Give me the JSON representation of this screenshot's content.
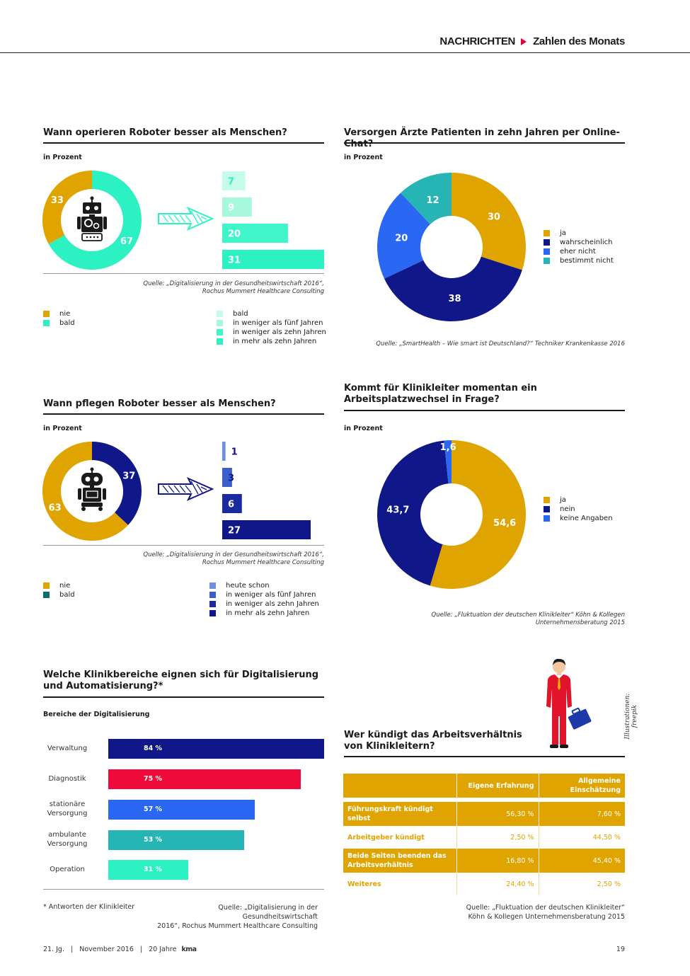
{
  "header": {
    "section": "NACHRICHTEN",
    "subsection": "Zahlen des Monats"
  },
  "unit_label": "in Prozent",
  "colors": {
    "gold": "#e0a400",
    "mint": "#2cf2c3",
    "navy": "#101788",
    "blue": "#2a67f2",
    "teal": "#27b4b4",
    "red": "#ef0a3c",
    "darkteal": "#0c6c6a",
    "textDark": "#1a1a1a"
  },
  "chart_data": [
    {
      "id": "robots_operate",
      "type": "pie",
      "title": "Wann operieren Roboter besser als Menschen?",
      "subtitle": "in Prozent",
      "slices": [
        {
          "name": "nie",
          "value": 33,
          "color": "#e0a400"
        },
        {
          "name": "bald",
          "value": 67,
          "color": "#2cf2c3"
        }
      ],
      "breakdown": {
        "type": "bar",
        "categories": [
          "bald",
          "in weniger als fünf Jahren",
          "in weniger als zehn Jahren",
          "in mehr als zehn Jahren"
        ],
        "values": [
          7,
          9,
          20,
          31
        ],
        "colors": [
          "#c4fbe9",
          "#a6f9dc",
          "#3ef6c9",
          "#2cf2c3"
        ],
        "label_colors": [
          "#2cf2c3",
          "#ffffff",
          "#ffffff",
          "#ffffff"
        ]
      },
      "source": [
        "Quelle: „Digitalisierung in der Gesundheitswirtschaft 2016“,",
        "Rochus Mummert Healthcare Consulting"
      ]
    },
    {
      "id": "online_chat",
      "type": "pie",
      "title": "Versorgen Ärzte Patienten in zehn Jahren per Online-Chat?",
      "subtitle": "in Prozent",
      "slices": [
        {
          "name": "ja",
          "value": 30,
          "color": "#e0a400"
        },
        {
          "name": "wahrscheinlich",
          "value": 38,
          "color": "#101788"
        },
        {
          "name": "eher nicht",
          "value": 20,
          "color": "#2a67f2"
        },
        {
          "name": "bestimmt nicht",
          "value": 12,
          "color": "#27b4b4"
        }
      ],
      "source": [
        "Quelle: „SmartHealth – Wie smart ist Deutschland?“ Techniker Krankenkasse 2016"
      ]
    },
    {
      "id": "robots_care",
      "type": "pie",
      "title": "Wann pflegen Roboter besser als Menschen?",
      "subtitle": "in Prozent",
      "slices": [
        {
          "name": "nie",
          "value": 63,
          "color": "#e0a400"
        },
        {
          "name": "bald",
          "value": 37,
          "color": "#101788"
        }
      ],
      "legend_colors": [
        "#e0a400",
        "#0c6c6a"
      ],
      "breakdown": {
        "type": "bar",
        "categories": [
          "heute schon",
          "in weniger als fünf Jahren",
          "in weniger als zehn Jahren",
          "in mehr als zehn Jahren"
        ],
        "values": [
          1,
          3,
          6,
          27
        ],
        "colors": [
          "#6f8fe0",
          "#3a5ecb",
          "#1b2a9e",
          "#101788"
        ],
        "label_colors": [
          "#101788",
          "#101788",
          "#ffffff",
          "#ffffff"
        ]
      },
      "source": [
        "Quelle: „Digitalisierung in der Gesundheitswirtschaft 2016“,",
        "Rochus Mummert Healthcare Consulting"
      ]
    },
    {
      "id": "job_change",
      "type": "pie",
      "title": "Kommt für Klinikleiter momentan ein Arbeitsplatzwechsel in Frage?",
      "subtitle": "in Prozent",
      "slices": [
        {
          "name": "ja",
          "value": 54.6,
          "label": "54,6",
          "color": "#e0a400"
        },
        {
          "name": "nein",
          "value": 43.7,
          "label": "43,7",
          "color": "#101788"
        },
        {
          "name": "keine Angaben",
          "value": 1.6,
          "label": "1,6",
          "color": "#2a67f2"
        }
      ],
      "source": [
        "Quelle: „Fluktuation der deutschen Klinikleiter“ Köhn & Kollegen",
        "Unternehmensberatung 2015"
      ]
    },
    {
      "id": "digitalisation_areas",
      "type": "bar",
      "title": "Welche Klinikbereiche eignen sich für Digitalisierung und Automatisierung?*",
      "subtitle": "Bereiche der Digitalisierung",
      "categories": [
        "Verwaltung",
        "Diagnostik",
        "stationäre Versorgung",
        "ambulante Versorgung",
        "Operation"
      ],
      "values": [
        84,
        75,
        57,
        53,
        31
      ],
      "labels": [
        "84 %",
        "75 %",
        "57 %",
        "53 %",
        "31 %"
      ],
      "colors": [
        "#101788",
        "#ef0a3c",
        "#2a67f2",
        "#27b4b4",
        "#2cf2c3"
      ],
      "footnote": "* Antworten der Klinikleiter",
      "source": [
        "Quelle: „Digitalisierung in der Gesundheitswirtschaft",
        "2016“, Rochus Mummert Healthcare Consulting"
      ]
    },
    {
      "id": "termination",
      "type": "table",
      "title": "Wer kündigt das Arbeitsverhältnis von Klinikleitern?",
      "columns": [
        "Eigene Erfahrung",
        "Allgemeine Einschätzung"
      ],
      "rows": [
        {
          "label": "Führungskraft kündigt selbst",
          "values": [
            "56,30 %",
            "7,60 %"
          ]
        },
        {
          "label": "Arbeitgeber kündigt",
          "values": [
            "2,50 %",
            "44,50 %"
          ]
        },
        {
          "label": "Beide Seiten beenden das Arbeitsverhältnis",
          "values": [
            "16,80 %",
            "45,40 %"
          ]
        },
        {
          "label": "Weiteres",
          "values": [
            "24,40 %",
            "2,50 %"
          ]
        }
      ],
      "source": [
        "Quelle: „Fluktuation der deutschen Klinikleiter“",
        "Köhn & Kollegen Unternehmensberatung 2015"
      ]
    }
  ],
  "illustration_credit": "Illustrationen: freepik",
  "footer": {
    "volume": "21. Jg.",
    "sep1": "|",
    "date": "November 2016",
    "sep2": "|",
    "anniversary": "20 Jahre",
    "brand": "kma",
    "page": "19"
  }
}
